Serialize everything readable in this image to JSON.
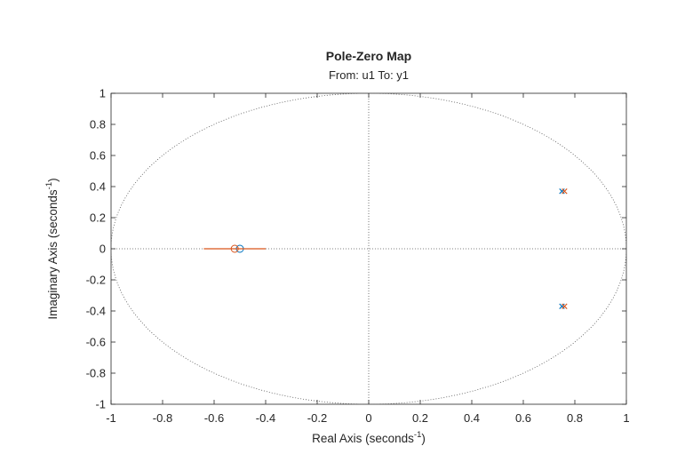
{
  "chart_data": {
    "type": "scatter",
    "title": "Pole-Zero Map",
    "subtitle": "From: u1  To: y1",
    "xlabel": {
      "text": "Real  Axis  (seconds",
      "sup": "-1",
      "close": ")"
    },
    "ylabel": {
      "text": "Imaginary  Axis  (seconds",
      "sup": "-1",
      "close": ")"
    },
    "xlim": [
      -1,
      1
    ],
    "ylim": [
      -1,
      1
    ],
    "xticks": [
      -1,
      -0.8,
      -0.6,
      -0.4,
      -0.2,
      0,
      0.2,
      0.4,
      0.6,
      0.8,
      1
    ],
    "xtick_labels": [
      "-1",
      "-0.8",
      "-0.6",
      "-0.4",
      "-0.2",
      "0",
      "0.2",
      "0.4",
      "0.6",
      "0.8",
      "1"
    ],
    "yticks": [
      -1,
      -0.8,
      -0.6,
      -0.4,
      -0.2,
      0,
      0.2,
      0.4,
      0.6,
      0.8,
      1
    ],
    "ytick_labels": [
      "-1",
      "-0.8",
      "-0.6",
      "-0.4",
      "-0.2",
      "0",
      "0.2",
      "0.4",
      "0.6",
      "0.8",
      "1"
    ],
    "unit_circle": true,
    "grid": false,
    "colors": {
      "series1": "#0072bd",
      "series2": "#d95319",
      "axes": "#262626",
      "dotted": "#555555"
    },
    "series": [
      {
        "color": "#0072bd",
        "poles": [
          {
            "re": 0.75,
            "im": 0.37
          },
          {
            "re": 0.75,
            "im": -0.37
          }
        ],
        "zeros": [
          {
            "re": -0.5,
            "im": 0
          }
        ]
      },
      {
        "color": "#d95319",
        "poles": [
          {
            "re": 0.76,
            "im": 0.37
          },
          {
            "re": 0.76,
            "im": -0.37
          }
        ],
        "zeros": [
          {
            "re": -0.52,
            "im": 0
          }
        ],
        "real_segment": [
          -0.64,
          -0.4
        ]
      }
    ]
  }
}
